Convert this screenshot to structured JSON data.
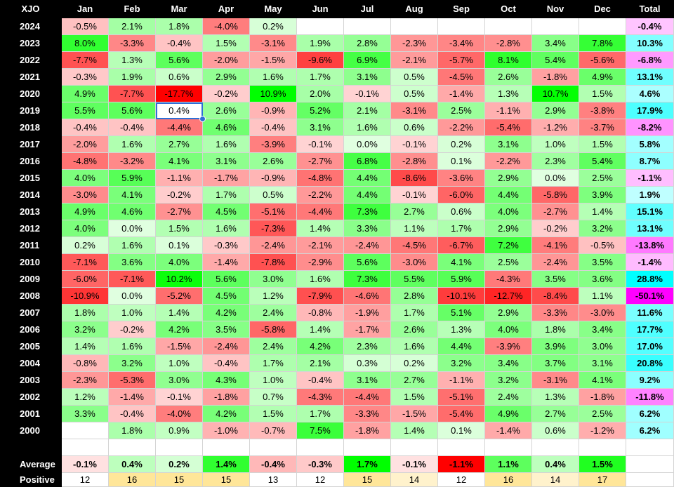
{
  "sheet": {
    "corner_label": "XJO",
    "months": [
      "Jan",
      "Feb",
      "Mar",
      "Apr",
      "May",
      "Jun",
      "Jul",
      "Aug",
      "Sep",
      "Oct",
      "Nov",
      "Dec"
    ],
    "total_label": "Total",
    "selected_cell": {
      "year": "2019",
      "month": "Mar"
    },
    "rows": [
      {
        "year": "2024",
        "values": [
          "-0.5%",
          "2.1%",
          "1.8%",
          "-4.0%",
          "0.2%",
          "",
          "",
          "",
          "",
          "",
          "",
          ""
        ],
        "total": "-0.4%"
      },
      {
        "year": "2023",
        "values": [
          "8.0%",
          "-3.3%",
          "-0.4%",
          "1.5%",
          "-3.1%",
          "1.9%",
          "2.8%",
          "-2.3%",
          "-3.4%",
          "-2.8%",
          "3.4%",
          "7.8%"
        ],
        "total": "10.3%"
      },
      {
        "year": "2022",
        "values": [
          "-7.7%",
          "1.3%",
          "5.6%",
          "-2.0%",
          "-1.5%",
          "-9.6%",
          "6.9%",
          "-2.1%",
          "-5.7%",
          "8.1%",
          "5.4%",
          "-5.6%"
        ],
        "total": "-6.8%"
      },
      {
        "year": "2021",
        "values": [
          "-0.3%",
          "1.9%",
          "0.6%",
          "2.9%",
          "1.6%",
          "1.7%",
          "3.1%",
          "0.5%",
          "-4.5%",
          "2.6%",
          "-1.8%",
          "4.9%"
        ],
        "total": "13.1%"
      },
      {
        "year": "2020",
        "values": [
          "4.9%",
          "-7.7%",
          "-17.7%",
          "-0.2%",
          "10.9%",
          "2.0%",
          "-0.1%",
          "0.5%",
          "-1.4%",
          "1.3%",
          "10.7%",
          "1.5%"
        ],
        "total": "4.6%"
      },
      {
        "year": "2019",
        "values": [
          "5.5%",
          "5.6%",
          "0.4%",
          "2.6%",
          "-0.9%",
          "5.2%",
          "2.1%",
          "-3.1%",
          "2.5%",
          "-1.1%",
          "2.9%",
          "-3.8%"
        ],
        "total": "17.9%"
      },
      {
        "year": "2018",
        "values": [
          "-0.4%",
          "-0.4%",
          "-4.4%",
          "4.6%",
          "-0.4%",
          "3.1%",
          "1.6%",
          "0.6%",
          "-2.2%",
          "-5.4%",
          "-1.2%",
          "-3.7%"
        ],
        "total": "-8.2%"
      },
      {
        "year": "2017",
        "values": [
          "-2.0%",
          "1.6%",
          "2.7%",
          "1.6%",
          "-3.9%",
          "-0.1%",
          "0.0%",
          "-0.1%",
          "0.2%",
          "3.1%",
          "1.0%",
          "1.5%"
        ],
        "total": "5.8%"
      },
      {
        "year": "2016",
        "values": [
          "-4.8%",
          "-3.2%",
          "4.1%",
          "3.1%",
          "2.6%",
          "-2.7%",
          "6.8%",
          "-2.8%",
          "0.1%",
          "-2.2%",
          "2.3%",
          "5.4%"
        ],
        "total": "8.7%"
      },
      {
        "year": "2015",
        "values": [
          "4.0%",
          "5.9%",
          "-1.1%",
          "-1.7%",
          "-0.9%",
          "-4.8%",
          "4.4%",
          "-8.6%",
          "-3.6%",
          "2.9%",
          "0.0%",
          "2.5%"
        ],
        "total": "-1.1%"
      },
      {
        "year": "2014",
        "values": [
          "-3.0%",
          "4.1%",
          "-0.2%",
          "1.7%",
          "0.5%",
          "-2.2%",
          "4.4%",
          "-0.1%",
          "-6.0%",
          "4.4%",
          "-5.8%",
          "3.9%"
        ],
        "total": "1.9%"
      },
      {
        "year": "2013",
        "values": [
          "4.9%",
          "4.6%",
          "-2.7%",
          "4.5%",
          "-5.1%",
          "-4.4%",
          "7.3%",
          "2.7%",
          "0.6%",
          "4.0%",
          "-2.7%",
          "1.4%"
        ],
        "total": "15.1%"
      },
      {
        "year": "2012",
        "values": [
          "4.0%",
          "0.0%",
          "1.5%",
          "1.6%",
          "-7.3%",
          "1.4%",
          "3.3%",
          "1.1%",
          "1.7%",
          "2.9%",
          "-0.2%",
          "3.2%"
        ],
        "total": "13.1%"
      },
      {
        "year": "2011",
        "values": [
          "0.2%",
          "1.6%",
          "0.1%",
          "-0.3%",
          "-2.4%",
          "-2.1%",
          "-2.4%",
          "-4.5%",
          "-6.7%",
          "7.2%",
          "-4.1%",
          "-0.5%"
        ],
        "total": "-13.8%"
      },
      {
        "year": "2010",
        "values": [
          "-7.1%",
          "3.6%",
          "4.0%",
          "-1.4%",
          "-7.8%",
          "-2.9%",
          "5.6%",
          "-3.0%",
          "4.1%",
          "2.5%",
          "-2.4%",
          "3.5%"
        ],
        "total": "-1.4%"
      },
      {
        "year": "2009",
        "values": [
          "-6.0%",
          "-7.1%",
          "10.2%",
          "5.6%",
          "3.0%",
          "1.6%",
          "7.3%",
          "5.5%",
          "5.9%",
          "-4.3%",
          "3.5%",
          "3.6%"
        ],
        "total": "28.8%"
      },
      {
        "year": "2008",
        "values": [
          "-10.9%",
          "0.0%",
          "-5.2%",
          "4.5%",
          "1.2%",
          "-7.9%",
          "-4.6%",
          "2.8%",
          "-10.1%",
          "-12.7%",
          "-8.4%",
          "1.1%"
        ],
        "total": "-50.1%"
      },
      {
        "year": "2007",
        "values": [
          "1.8%",
          "1.0%",
          "1.4%",
          "4.2%",
          "2.4%",
          "-0.8%",
          "-1.9%",
          "1.7%",
          "5.1%",
          "2.9%",
          "-3.3%",
          "-3.0%"
        ],
        "total": "11.6%"
      },
      {
        "year": "2006",
        "values": [
          "3.2%",
          "-0.2%",
          "4.2%",
          "3.5%",
          "-5.8%",
          "1.4%",
          "-1.7%",
          "2.6%",
          "1.3%",
          "4.0%",
          "1.8%",
          "3.4%"
        ],
        "total": "17.7%"
      },
      {
        "year": "2005",
        "values": [
          "1.4%",
          "1.6%",
          "-1.5%",
          "-2.4%",
          "2.4%",
          "4.2%",
          "2.3%",
          "1.6%",
          "4.4%",
          "-3.9%",
          "3.9%",
          "3.0%"
        ],
        "total": "17.0%"
      },
      {
        "year": "2004",
        "values": [
          "-0.8%",
          "3.2%",
          "1.0%",
          "-0.4%",
          "1.7%",
          "2.1%",
          "0.3%",
          "0.2%",
          "3.2%",
          "3.4%",
          "3.7%",
          "3.1%"
        ],
        "total": "20.8%"
      },
      {
        "year": "2003",
        "values": [
          "-2.3%",
          "-5.3%",
          "3.0%",
          "4.3%",
          "1.0%",
          "-0.4%",
          "3.1%",
          "2.7%",
          "-1.1%",
          "3.2%",
          "-3.1%",
          "4.1%"
        ],
        "total": "9.2%"
      },
      {
        "year": "2002",
        "values": [
          "1.2%",
          "-1.4%",
          "-0.1%",
          "-1.8%",
          "0.7%",
          "-4.3%",
          "-4.4%",
          "1.5%",
          "-5.1%",
          "2.4%",
          "1.3%",
          "-1.8%"
        ],
        "total": "-11.8%"
      },
      {
        "year": "2001",
        "values": [
          "3.3%",
          "-0.4%",
          "-4.0%",
          "4.2%",
          "1.5%",
          "1.7%",
          "-3.3%",
          "-1.5%",
          "-5.4%",
          "4.9%",
          "2.7%",
          "2.5%"
        ],
        "total": "6.2%"
      },
      {
        "year": "2000",
        "values": [
          "",
          "1.8%",
          "0.9%",
          "-1.0%",
          "-0.7%",
          "7.5%",
          "-1.8%",
          "1.4%",
          "0.1%",
          "-1.4%",
          "0.6%",
          "-1.2%"
        ],
        "total": "6.2%"
      }
    ],
    "average_label": "Average",
    "averages": [
      "-0.1%",
      "0.4%",
      "0.2%",
      "1.4%",
      "-0.4%",
      "-0.3%",
      "1.7%",
      "-0.1%",
      "-1.1%",
      "1.1%",
      "0.4%",
      "1.5%"
    ],
    "positive_label": "Positive",
    "positives": [
      "12",
      "16",
      "15",
      "15",
      "13",
      "12",
      "15",
      "14",
      "12",
      "16",
      "14",
      "17"
    ]
  },
  "colors": {
    "header_bg": "#000000",
    "header_text": "#ffffff",
    "positive_strong": "#00ff00",
    "negative_strong": "#ff0000",
    "total_positive": "#00ffff",
    "total_negative": "#ff00ff",
    "positive_count_bg": "#ffe699",
    "selection": "#2f6fd6"
  }
}
